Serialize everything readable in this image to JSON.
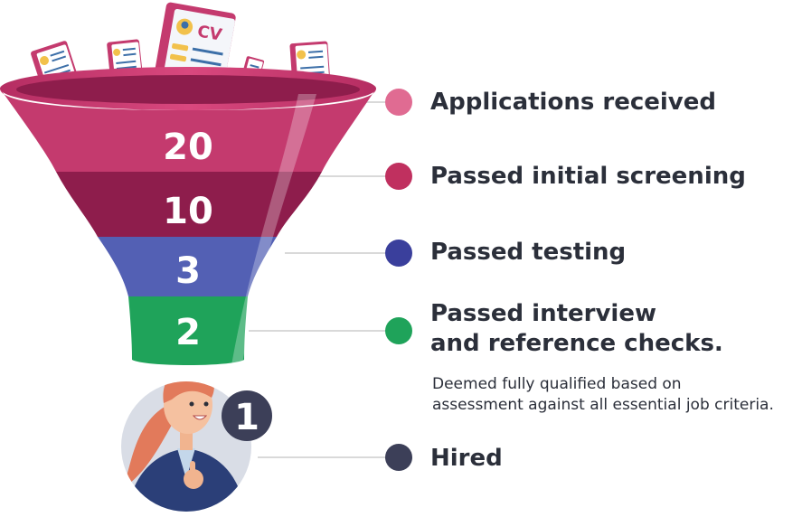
{
  "stages": [
    {
      "count": "20",
      "label": "Applications received",
      "color": "#c43a6e",
      "dot": "#e06b92"
    },
    {
      "count": "10",
      "label": "Passed initial screening",
      "color": "#8e1d4c",
      "dot": "#c0305f"
    },
    {
      "count": "3",
      "label": "Passed testing",
      "color": "#5360b4",
      "dot": "#3a3f9c"
    },
    {
      "count": "2",
      "label_line1": "Passed interview",
      "label_line2": "and reference checks.",
      "color": "#1fa35a",
      "dot": "#1fa35a"
    },
    {
      "count": "1",
      "label": "Hired",
      "color": "#3c3f58",
      "dot": "#3c3f58"
    }
  ],
  "note_line1": "Deemed fully qualified based on",
  "note_line2": "assessment against all essential job criteria.",
  "cv_text": "CV"
}
